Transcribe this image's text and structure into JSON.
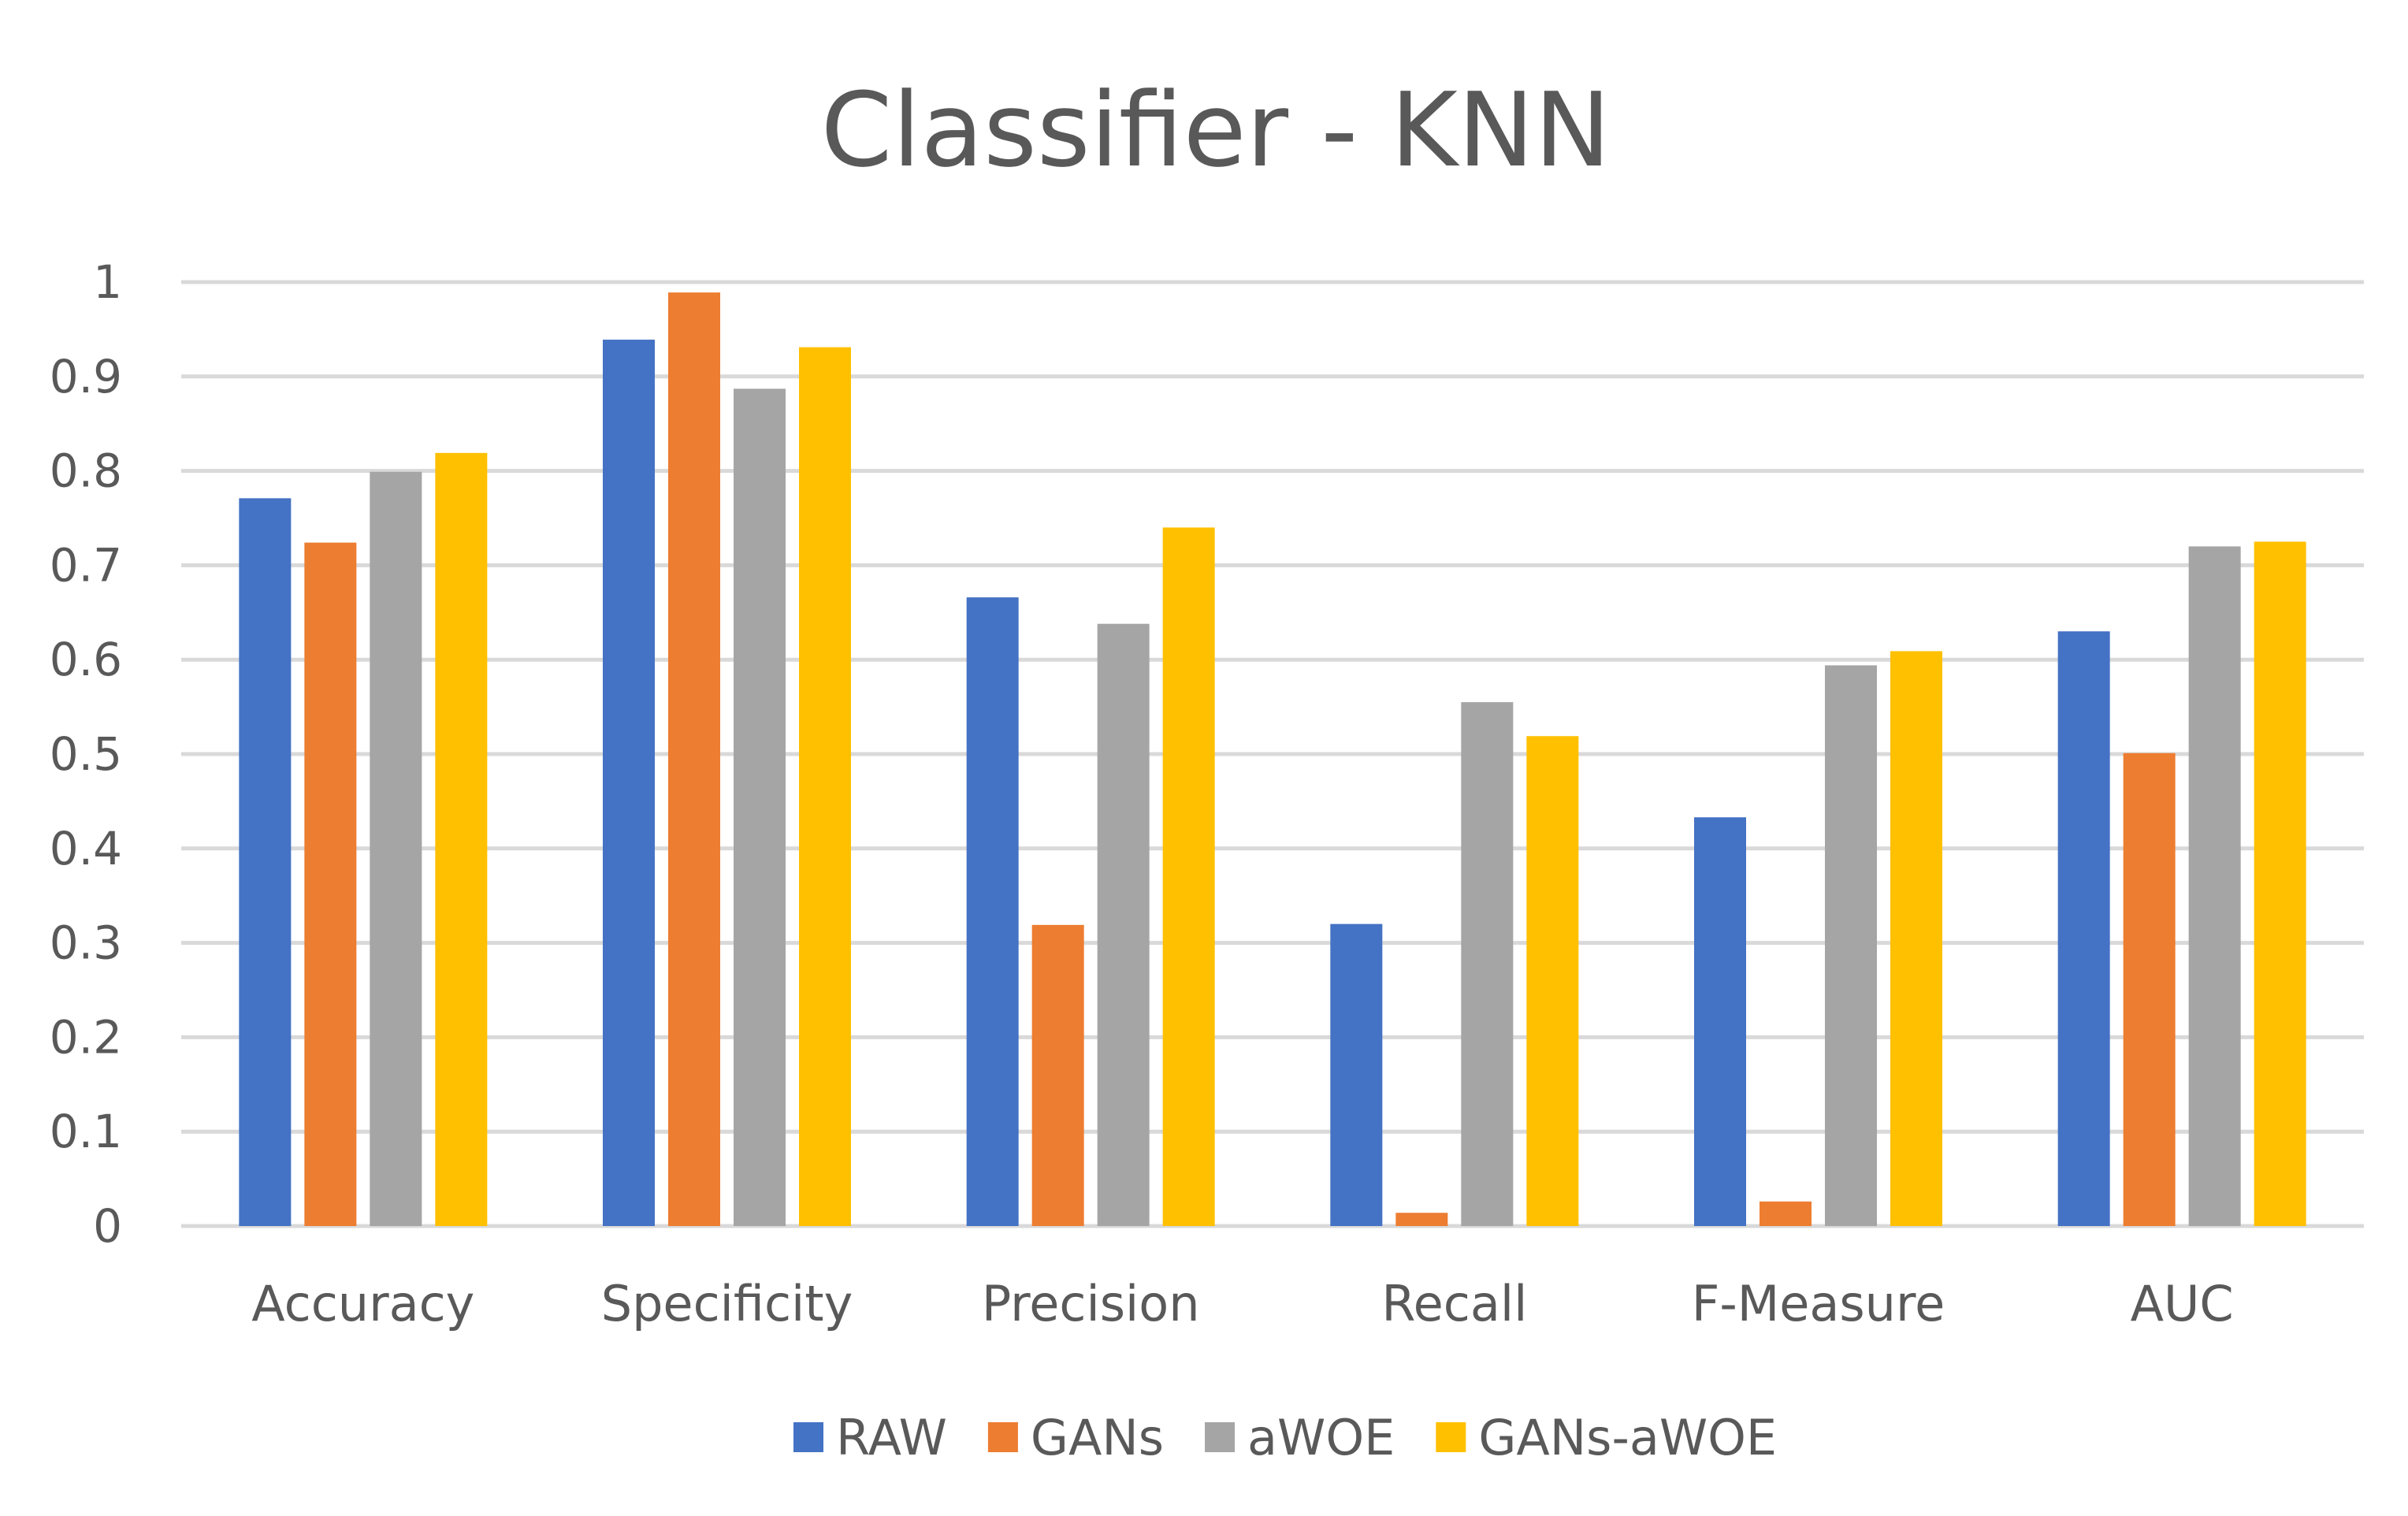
{
  "chart_data": {
    "type": "bar",
    "title": "Classifier - KNN",
    "xlabel": "",
    "ylabel": "",
    "categories": [
      "Accuracy",
      "Specificity",
      "Precision",
      "Recall",
      "F-Measure",
      "AUC"
    ],
    "series": [
      {
        "name": "RAW",
        "color": "#4472c4",
        "values": [
          0.771,
          0.939,
          0.666,
          0.32,
          0.433,
          0.63
        ]
      },
      {
        "name": "GANs",
        "color": "#ed7d31",
        "values": [
          0.724,
          0.989,
          0.319,
          0.014,
          0.026,
          0.501
        ]
      },
      {
        "name": "aWOE",
        "color": "#a5a5a5",
        "values": [
          0.799,
          0.887,
          0.638,
          0.555,
          0.594,
          0.72
        ]
      },
      {
        "name": "GANs-aWOE",
        "color": "#ffc000",
        "values": [
          0.819,
          0.931,
          0.74,
          0.519,
          0.609,
          0.725
        ]
      }
    ],
    "yticks": [
      "0",
      "0.1",
      "0.2",
      "0.3",
      "0.4",
      "0.5",
      "0.6",
      "0.7",
      "0.8",
      "0.9",
      "1"
    ],
    "ylim": [
      0,
      1
    ],
    "grid": true,
    "legend_position": "bottom"
  }
}
